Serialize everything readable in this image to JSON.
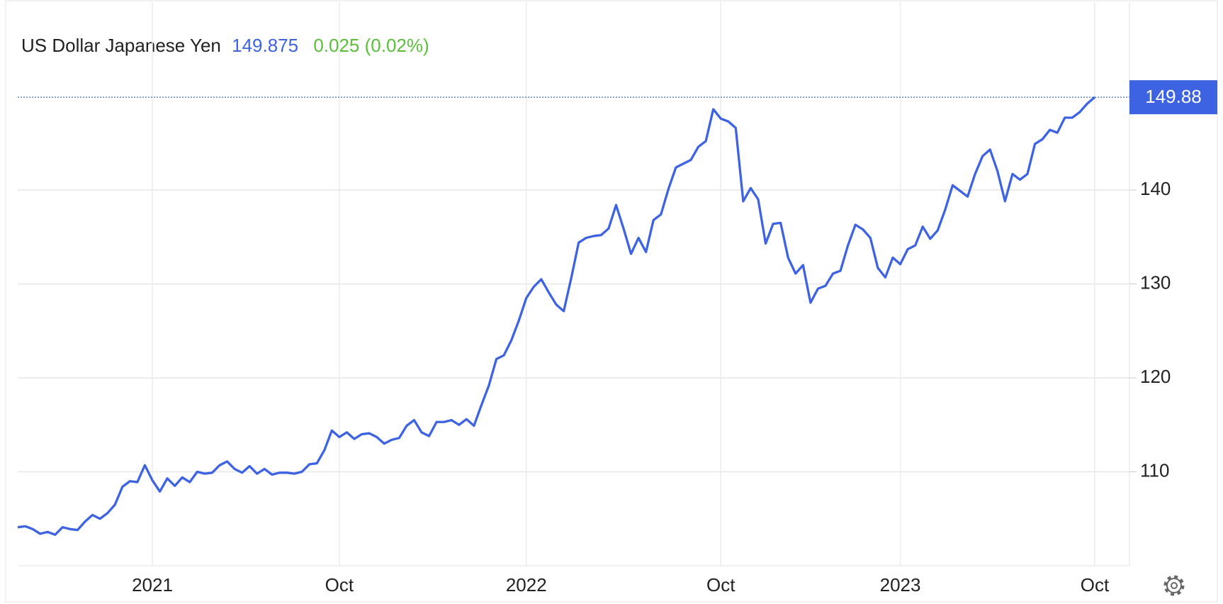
{
  "chart_data": {
    "type": "line",
    "title": "US Dollar Japanese Yen",
    "price": 149.875,
    "change": "0.025 (0.02%)",
    "price_tag": {
      "value": 149.875,
      "label": "149.88"
    },
    "categories": [
      null,
      null,
      null,
      null,
      null,
      null,
      null,
      null,
      null,
      null,
      null,
      null,
      null,
      null,
      null,
      null,
      null,
      null,
      "2021",
      null,
      null,
      null,
      null,
      null,
      null,
      null,
      null,
      null,
      null,
      null,
      null,
      null,
      null,
      null,
      null,
      null,
      null,
      null,
      null,
      null,
      null,
      null,
      null,
      "Oct",
      null,
      null,
      null,
      null,
      null,
      null,
      null,
      null,
      null,
      null,
      null,
      null,
      null,
      null,
      null,
      null,
      null,
      null,
      null,
      null,
      null,
      null,
      null,
      null,
      "2022",
      null,
      null,
      null,
      null,
      null,
      null,
      null,
      null,
      null,
      null,
      null,
      null,
      null,
      null,
      null,
      null,
      null,
      null,
      null,
      null,
      null,
      null,
      null,
      null,
      null,
      "Oct",
      null,
      null,
      null,
      null,
      null,
      null,
      null,
      null,
      null,
      null,
      null,
      null,
      null,
      null,
      null,
      null,
      null,
      null,
      null,
      null,
      null,
      null,
      null,
      "2023",
      null,
      null,
      null,
      null,
      null,
      null,
      null,
      null,
      null,
      null,
      null,
      null,
      null,
      null,
      null,
      null,
      null,
      null,
      null,
      null,
      null,
      null,
      null,
      null,
      null,
      "Oct"
    ],
    "series": [
      {
        "name": "US Dollar Japanese Yen",
        "color": "#3d63e3",
        "values": [
          104.1,
          104.2,
          103.9,
          103.4,
          103.6,
          103.3,
          104.1,
          103.9,
          103.8,
          104.7,
          105.4,
          105.0,
          105.6,
          106.5,
          108.4,
          109.0,
          108.9,
          110.7,
          109.1,
          107.9,
          109.3,
          108.5,
          109.4,
          108.9,
          110.0,
          109.8,
          109.9,
          110.7,
          111.1,
          110.3,
          109.9,
          110.6,
          109.8,
          110.3,
          109.7,
          109.9,
          109.9,
          109.8,
          110.0,
          110.8,
          110.9,
          112.3,
          114.4,
          113.7,
          114.2,
          113.5,
          114.0,
          114.1,
          113.7,
          113.0,
          113.4,
          113.6,
          114.9,
          115.5,
          114.2,
          113.8,
          115.3,
          115.3,
          115.5,
          115.0,
          115.6,
          114.9,
          117.1,
          119.2,
          122.0,
          122.4,
          124.0,
          126.1,
          128.5,
          129.7,
          130.5,
          129.1,
          127.8,
          127.1,
          130.6,
          134.4,
          134.9,
          135.1,
          135.2,
          135.9,
          138.4,
          135.9,
          133.2,
          134.9,
          133.4,
          136.8,
          137.4,
          140.1,
          142.4,
          142.8,
          143.2,
          144.6,
          145.2,
          148.6,
          147.6,
          147.3,
          146.6,
          138.8,
          140.2,
          139.0,
          134.3,
          136.4,
          136.5,
          132.8,
          131.1,
          132.0,
          128.0,
          129.5,
          129.8,
          131.1,
          131.4,
          134.1,
          136.3,
          135.8,
          134.9,
          131.7,
          130.7,
          132.8,
          132.1,
          133.7,
          134.1,
          136.1,
          134.8,
          135.7,
          137.9,
          140.5,
          139.9,
          139.3,
          141.7,
          143.6,
          144.3,
          142.0,
          138.8,
          141.7,
          141.1,
          141.7,
          144.9,
          145.4,
          146.4,
          146.1,
          147.7,
          147.7,
          148.3,
          149.2,
          149.875
        ]
      }
    ],
    "ylim": [
      100,
      160
    ],
    "yticks": [
      110,
      120,
      130,
      140
    ],
    "grid": true
  }
}
